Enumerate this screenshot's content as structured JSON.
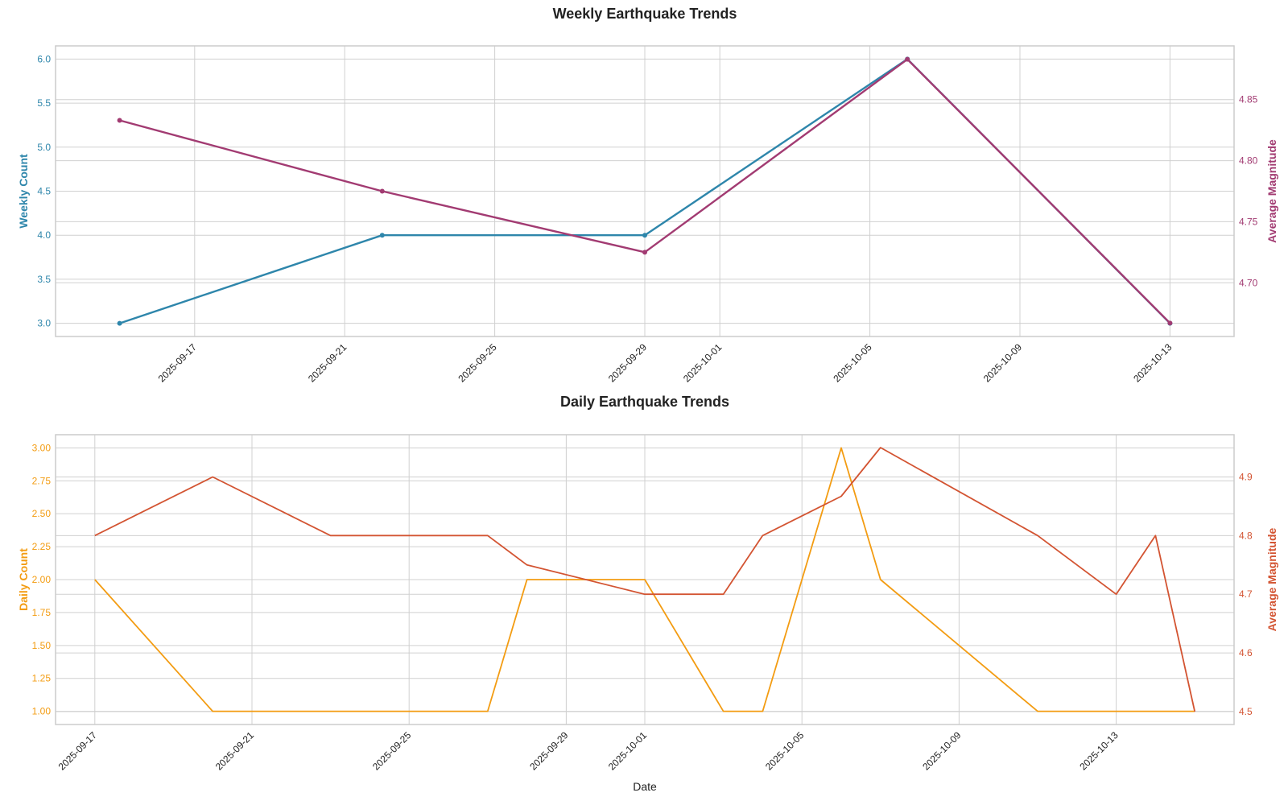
{
  "chart_data": [
    {
      "type": "line",
      "title": "Weekly Earthquake Trends",
      "xlabel": "",
      "ylabel_left": "Weekly Count",
      "ylabel_right": "Average Magnitude",
      "x": [
        "2025-09-15",
        "2025-09-22",
        "2025-09-29",
        "2025-10-06",
        "2025-10-13"
      ],
      "series": [
        {
          "axis": "left",
          "color": "#2e86ab",
          "marker": true,
          "values": [
            3,
            4,
            4,
            6,
            3
          ]
        },
        {
          "axis": "right",
          "color": "#a23b72",
          "marker": true,
          "values": [
            4.833,
            4.775,
            4.725,
            4.883,
            4.667
          ]
        }
      ],
      "xlim": [
        "2025-09-13T07:00:00",
        "2025-10-14T17:00:00"
      ],
      "xticks": [
        "2025-09-17",
        "2025-09-21",
        "2025-09-25",
        "2025-09-29",
        "2025-10-01",
        "2025-10-05",
        "2025-10-09",
        "2025-10-13"
      ],
      "ylim_left": [
        2.85,
        6.15
      ],
      "yticks_left": [
        "3.0",
        "3.5",
        "4.0",
        "4.5",
        "5.0",
        "5.5",
        "6.0"
      ],
      "ylim_right": [
        4.656,
        4.894
      ],
      "yticks_right": [
        "4.70",
        "4.75",
        "4.80",
        "4.85"
      ],
      "grid": true
    },
    {
      "type": "line",
      "title": "Daily Earthquake Trends",
      "xlabel": "Date",
      "ylabel_left": "Daily Count",
      "ylabel_right": "Average Magnitude",
      "x": [
        "2025-09-17",
        "2025-09-20",
        "2025-09-23",
        "2025-09-24",
        "2025-09-25",
        "2025-09-26",
        "2025-09-27",
        "2025-09-28",
        "2025-10-01",
        "2025-10-03",
        "2025-10-04",
        "2025-10-06",
        "2025-10-07",
        "2025-10-11",
        "2025-10-13",
        "2025-10-14",
        "2025-10-15"
      ],
      "series": [
        {
          "axis": "left",
          "color": "#f39c12",
          "marker": false,
          "values": [
            2,
            1,
            1,
            1,
            1,
            1,
            1,
            2,
            2,
            1,
            1,
            3,
            2,
            1,
            1,
            1,
            1
          ]
        },
        {
          "axis": "right",
          "color": "#d35432",
          "marker": false,
          "values": [
            4.8,
            4.9,
            4.8,
            4.8,
            4.8,
            4.8,
            4.8,
            4.75,
            4.7,
            4.7,
            4.8,
            4.867,
            4.95,
            4.8,
            4.7,
            4.8,
            4.5
          ]
        }
      ],
      "xlim": [
        "2025-09-16T00:00:00",
        "2025-10-16T00:00:00"
      ],
      "xticks": [
        "2025-09-17",
        "2025-09-21",
        "2025-09-25",
        "2025-09-29",
        "2025-10-01",
        "2025-10-05",
        "2025-10-09",
        "2025-10-13"
      ],
      "ylim_left": [
        0.9,
        3.1
      ],
      "yticks_left": [
        "1.00",
        "1.25",
        "1.50",
        "1.75",
        "2.00",
        "2.25",
        "2.50",
        "2.75",
        "3.00"
      ],
      "ylim_right": [
        4.478,
        4.972
      ],
      "yticks_right": [
        "4.5",
        "4.6",
        "4.7",
        "4.8",
        "4.9"
      ],
      "grid": true
    }
  ],
  "colors": {
    "weekly_left_axis": "#2e86ab",
    "weekly_right_axis": "#a23b72",
    "daily_left_axis": "#f39c12",
    "daily_right_axis": "#d35432"
  }
}
